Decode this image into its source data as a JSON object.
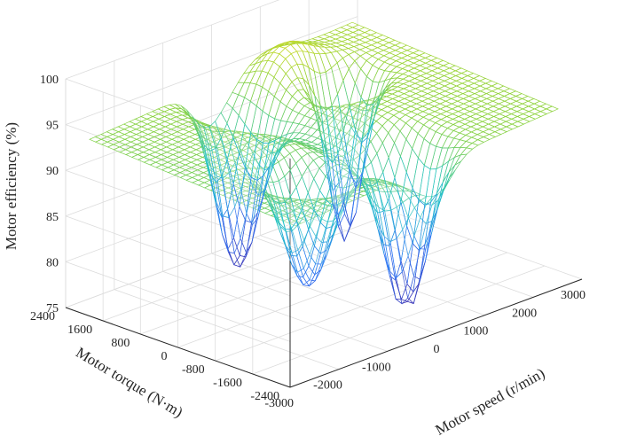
{
  "chart_data": {
    "type": "surface",
    "xlabel": "Motor speed (r/min)",
    "ylabel": "Motor torque (N·m)",
    "zlabel": "Motor efficiency (%)",
    "xlim": [
      -3000,
      3000
    ],
    "ylim": [
      -2400,
      2400
    ],
    "zlim": [
      75,
      100
    ],
    "x_ticks": [
      "-3000",
      "-2000",
      "-1000",
      "0",
      "1000",
      "2000",
      "3000"
    ],
    "y_ticks": [
      "-2400",
      "-1600",
      "-800",
      "0",
      "800",
      "1600",
      "2400"
    ],
    "z_ticks": [
      "75",
      "80",
      "85",
      "90",
      "95",
      "100"
    ],
    "grid": true,
    "colormap": "parula",
    "colors": {
      "low": "#3e26a8",
      "mid": "#21c4c8",
      "high": "#f9e021"
    },
    "surface_description": "Efficiency mesh with four steep dips to about 76-78% near low speed/torque in each quadrant and plateaus of about 92-97% elsewhere",
    "x": [
      -3000,
      -2000,
      -1000,
      0,
      1000,
      2000,
      3000
    ],
    "y": [
      -2400,
      -1600,
      -800,
      0,
      800,
      1600,
      2400
    ],
    "z_sample": [
      [
        93,
        92,
        90,
        78,
        90,
        92,
        93
      ],
      [
        92,
        91,
        86,
        76,
        86,
        93,
        95
      ],
      [
        90,
        86,
        84,
        80,
        84,
        88,
        92
      ],
      [
        86,
        82,
        80,
        84,
        80,
        86,
        90
      ],
      [
        92,
        88,
        84,
        80,
        84,
        86,
        95
      ],
      [
        95,
        93,
        86,
        77,
        86,
        91,
        97
      ],
      [
        96,
        94,
        90,
        79,
        90,
        92,
        93
      ]
    ]
  }
}
